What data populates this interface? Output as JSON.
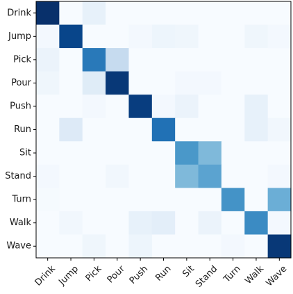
{
  "chart_data": {
    "type": "heatmap",
    "title": "",
    "xlabel": "",
    "ylabel": "",
    "x_categories": [
      "Drink",
      "Jump",
      "Pick",
      "Pour",
      "Push",
      "Run",
      "Sit",
      "Stand",
      "Turn",
      "Walk",
      "Wave"
    ],
    "y_categories": [
      "Drink",
      "Jump",
      "Pick",
      "Pour",
      "Push",
      "Run",
      "Sit",
      "Stand",
      "Turn",
      "Walk",
      "Wave"
    ],
    "colormap": "Blues",
    "value_range": [
      0,
      1
    ],
    "grid": false,
    "legend": "none",
    "matrix": [
      [
        1.0,
        0.0,
        0.08,
        0.0,
        0.0,
        0.0,
        0.0,
        0.0,
        0.0,
        0.0,
        0.0
      ],
      [
        0.02,
        0.92,
        0.0,
        0.0,
        0.02,
        0.05,
        0.04,
        0.0,
        0.0,
        0.04,
        0.02
      ],
      [
        0.06,
        0.0,
        0.72,
        0.25,
        0.0,
        0.0,
        0.0,
        0.0,
        0.0,
        0.0,
        0.0
      ],
      [
        0.04,
        0.0,
        0.12,
        0.97,
        0.0,
        0.0,
        0.02,
        0.02,
        0.0,
        0.0,
        0.0
      ],
      [
        0.0,
        0.0,
        0.02,
        0.0,
        0.95,
        0.02,
        0.06,
        0.0,
        0.0,
        0.08,
        0.0
      ],
      [
        0.0,
        0.13,
        0.0,
        0.0,
        0.0,
        0.75,
        0.0,
        0.0,
        0.0,
        0.08,
        0.03
      ],
      [
        0.0,
        0.0,
        0.0,
        0.0,
        0.0,
        0.0,
        0.6,
        0.45,
        0.0,
        0.0,
        0.0
      ],
      [
        0.02,
        0.0,
        0.0,
        0.03,
        0.0,
        0.0,
        0.45,
        0.55,
        0.0,
        0.0,
        0.02
      ],
      [
        0.01,
        0.0,
        0.0,
        0.0,
        0.0,
        0.0,
        0.0,
        0.0,
        0.62,
        0.0,
        0.5
      ],
      [
        0.0,
        0.03,
        0.0,
        0.0,
        0.08,
        0.1,
        0.0,
        0.06,
        0.0,
        0.65,
        0.02
      ],
      [
        0.0,
        0.0,
        0.04,
        0.0,
        0.05,
        0.0,
        0.0,
        0.0,
        0.02,
        0.0,
        0.97
      ]
    ]
  }
}
